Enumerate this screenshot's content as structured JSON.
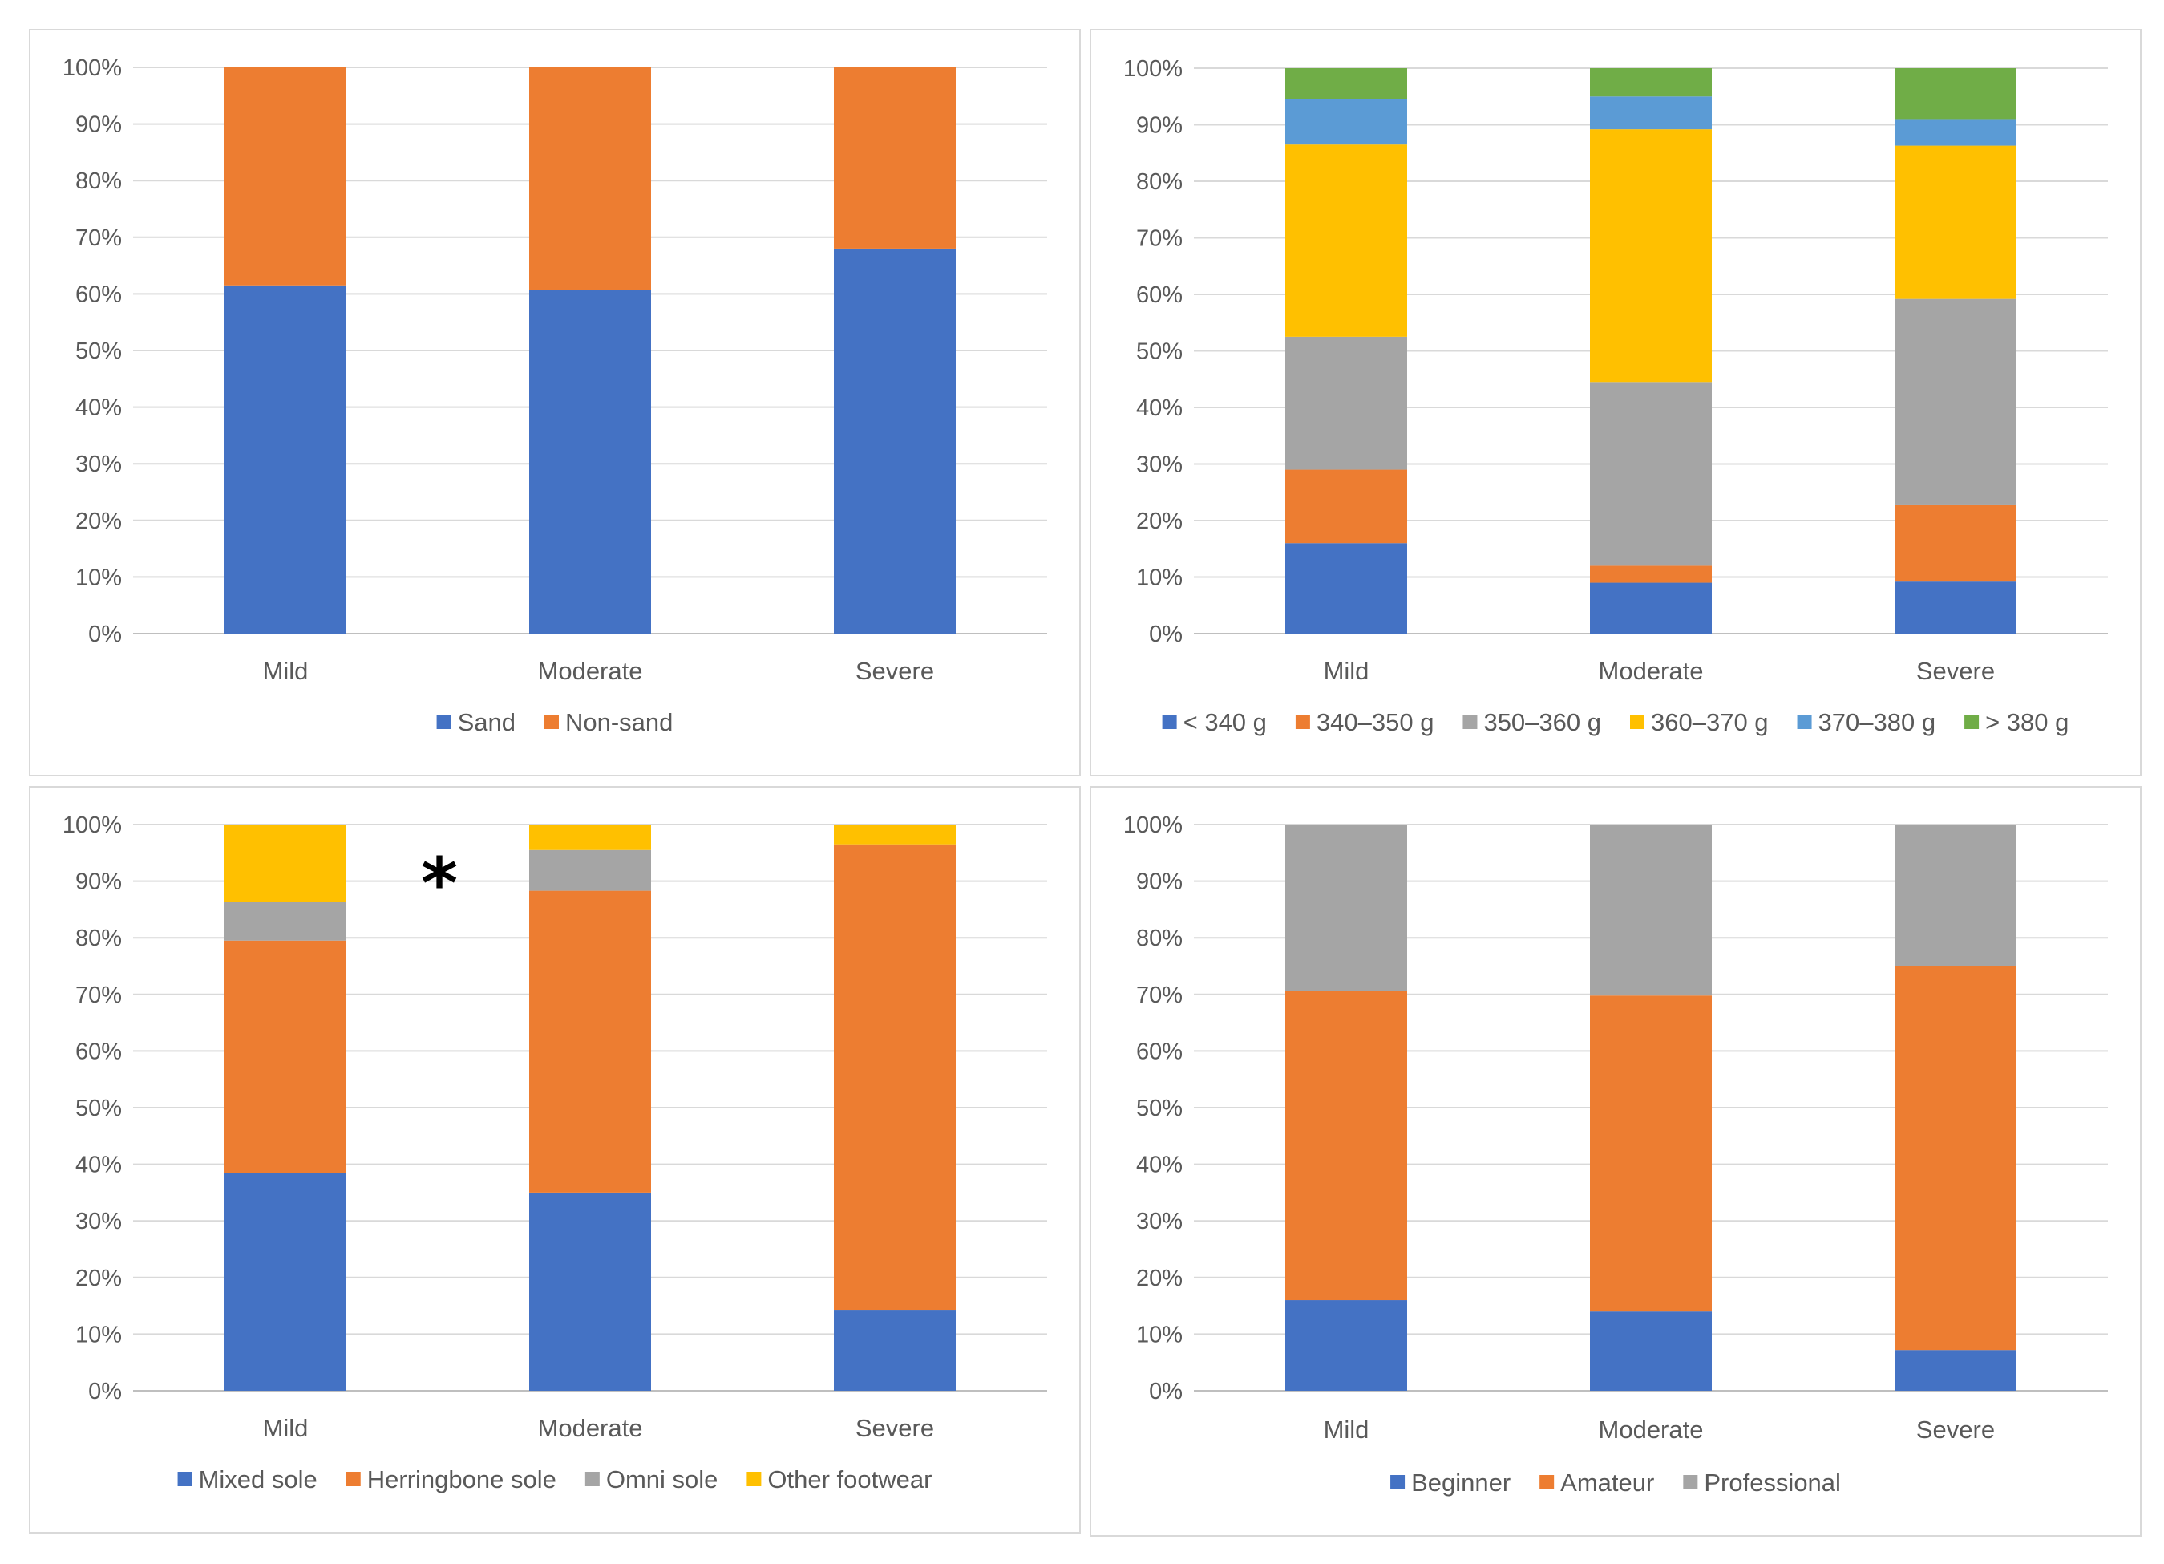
{
  "chart_data": [
    {
      "type": "bar",
      "stacked": true,
      "categories": [
        "Mild",
        "Moderate",
        "Severe"
      ],
      "series": [
        {
          "name": "Sand",
          "values": [
            61.5,
            60.7,
            68
          ],
          "color": "#4472c4"
        },
        {
          "name": "Non-sand",
          "values": [
            38.5,
            39.3,
            32
          ],
          "color": "#ed7d31"
        }
      ],
      "ylim": [
        0,
        100
      ],
      "y_ticks": [
        "0%",
        "10%",
        "20%",
        "30%",
        "40%",
        "50%",
        "60%",
        "70%",
        "80%",
        "90%",
        "100%"
      ],
      "grid": true,
      "legend_position": "bottom"
    },
    {
      "type": "bar",
      "stacked": true,
      "categories": [
        "Mild",
        "Moderate",
        "Severe"
      ],
      "series": [
        {
          "name": "< 340 g",
          "values": [
            16,
            9,
            9.2
          ],
          "color": "#4472c4"
        },
        {
          "name": "340–350 g",
          "values": [
            13,
            3,
            13.5
          ],
          "color": "#ed7d31"
        },
        {
          "name": "350–360 g",
          "values": [
            23.5,
            32.5,
            36.5
          ],
          "color": "#a5a5a5"
        },
        {
          "name": "360–370 g",
          "values": [
            34,
            44.7,
            27.1
          ],
          "color": "#ffc000"
        },
        {
          "name": "370–380 g",
          "values": [
            8,
            5.8,
            4.7
          ],
          "color": "#5b9bd5"
        },
        {
          "name": "> 380 g",
          "values": [
            5.5,
            5,
            9
          ],
          "color": "#70ad47"
        }
      ],
      "ylim": [
        0,
        100
      ],
      "y_ticks": [
        "0%",
        "10%",
        "20%",
        "30%",
        "40%",
        "50%",
        "60%",
        "70%",
        "80%",
        "90%",
        "100%"
      ],
      "grid": true,
      "legend_position": "bottom"
    },
    {
      "type": "bar",
      "stacked": true,
      "categories": [
        "Mild",
        "Moderate",
        "Severe"
      ],
      "series": [
        {
          "name": "Mixed sole",
          "values": [
            38.5,
            35,
            14.3
          ],
          "color": "#4472c4"
        },
        {
          "name": "Herringbone sole",
          "values": [
            41,
            53.3,
            82.2
          ],
          "color": "#ed7d31"
        },
        {
          "name": "Omni sole",
          "values": [
            6.8,
            7.2,
            0
          ],
          "color": "#a5a5a5"
        },
        {
          "name": "Other footwear",
          "values": [
            13.7,
            4.5,
            3.5
          ],
          "color": "#ffc000"
        }
      ],
      "ylim": [
        0,
        100
      ],
      "y_ticks": [
        "0%",
        "10%",
        "20%",
        "30%",
        "40%",
        "50%",
        "60%",
        "70%",
        "80%",
        "90%",
        "100%"
      ],
      "grid": true,
      "legend_position": "bottom",
      "annotation": "*"
    },
    {
      "type": "bar",
      "stacked": true,
      "categories": [
        "Mild",
        "Moderate",
        "Severe"
      ],
      "series": [
        {
          "name": "Beginner",
          "values": [
            16,
            14,
            7.2
          ],
          "color": "#4472c4"
        },
        {
          "name": "Amateur",
          "values": [
            54.6,
            55.8,
            67.8
          ],
          "color": "#ed7d31"
        },
        {
          "name": "Professional",
          "values": [
            29.4,
            30.2,
            25
          ],
          "color": "#a5a5a5"
        }
      ],
      "ylim": [
        0,
        100
      ],
      "y_ticks": [
        "0%",
        "10%",
        "20%",
        "30%",
        "40%",
        "50%",
        "60%",
        "70%",
        "80%",
        "90%",
        "100%"
      ],
      "grid": true,
      "legend_position": "bottom"
    }
  ]
}
